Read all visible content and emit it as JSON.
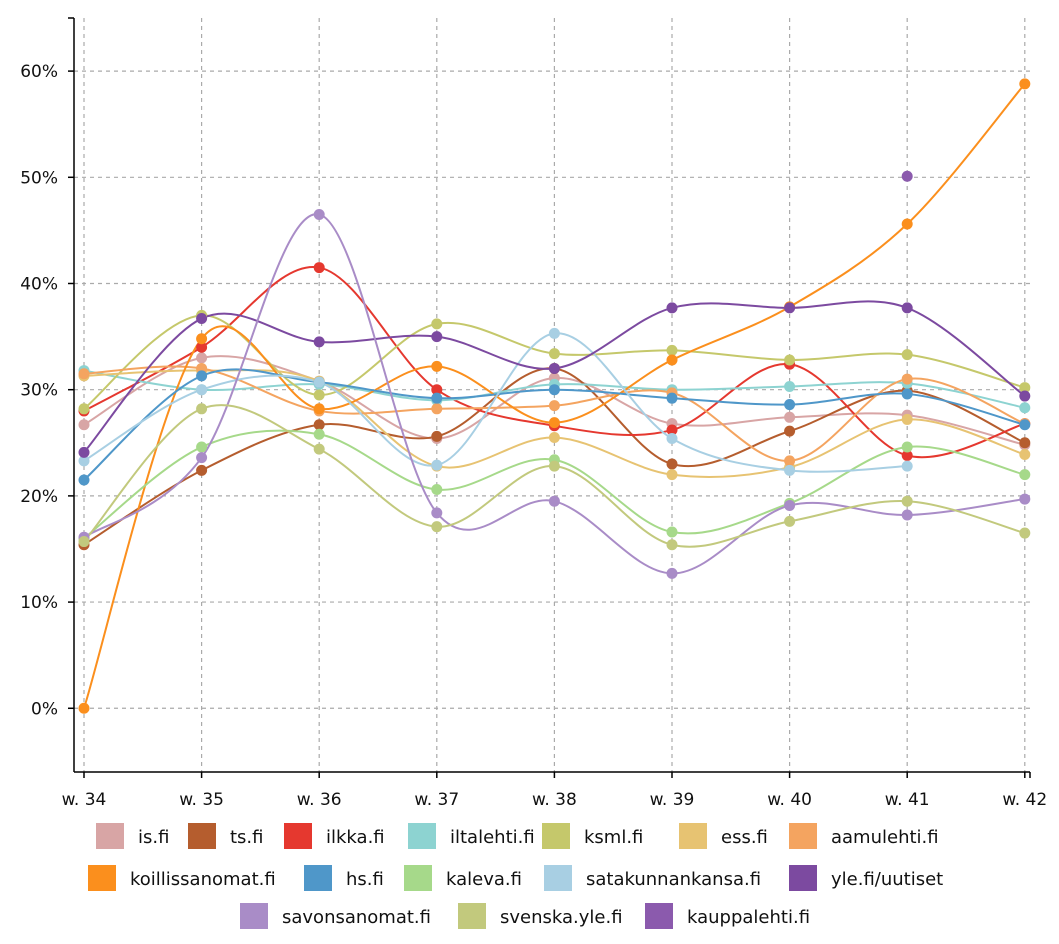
{
  "chart_data": {
    "type": "line",
    "title": "",
    "xlabel": "",
    "ylabel": "",
    "categories": [
      "w. 34",
      "w. 35",
      "w. 36",
      "w. 37",
      "w. 38",
      "w. 39",
      "w. 40",
      "w. 41",
      "w. 42"
    ],
    "ylim": [
      -0.06,
      0.65
    ],
    "yticks": [
      0,
      0.1,
      0.2,
      0.3,
      0.4,
      0.5,
      0.6
    ],
    "ytick_labels": [
      "0%",
      "10%",
      "20%",
      "30%",
      "40%",
      "50%",
      "60%"
    ],
    "grid": true,
    "legend_position": "bottom",
    "series": [
      {
        "name": "is.fi",
        "color": "#d8a5a5",
        "values": [
          0.267,
          0.33,
          0.308,
          0.254,
          0.311,
          0.268,
          0.274,
          0.276,
          0.248
        ]
      },
      {
        "name": "ts.fi",
        "color": "#b55d2e",
        "values": [
          0.154,
          0.224,
          0.267,
          0.256,
          0.32,
          0.23,
          0.261,
          0.299,
          0.25
        ]
      },
      {
        "name": "ilkka.fi",
        "color": "#e5382f",
        "values": [
          0.28,
          0.34,
          0.415,
          0.3,
          0.266,
          0.262,
          0.324,
          0.238,
          0.268
        ]
      },
      {
        "name": "iltalehti.fi",
        "color": "#8dd3d1",
        "values": [
          0.318,
          0.3,
          0.305,
          0.29,
          0.305,
          0.3,
          0.303,
          0.306,
          0.283
        ]
      },
      {
        "name": "ksml.fi",
        "color": "#c5c86b",
        "values": [
          0.282,
          0.37,
          0.295,
          0.362,
          0.334,
          0.337,
          0.328,
          0.333,
          0.302
        ]
      },
      {
        "name": "ess.fi",
        "color": "#e7c372",
        "values": [
          0.313,
          0.318,
          0.308,
          0.228,
          0.255,
          0.22,
          0.227,
          0.272,
          0.239
        ]
      },
      {
        "name": "aamulehti.fi",
        "color": "#f4a460",
        "values": [
          0.315,
          0.32,
          0.28,
          0.282,
          0.285,
          0.297,
          0.233,
          0.31,
          0.268
        ]
      },
      {
        "name": "koillissanomat.fi",
        "color": "#fb8f1d",
        "values": [
          0.0,
          0.348,
          0.282,
          0.322,
          0.269,
          0.328,
          0.378,
          0.456,
          0.588
        ]
      },
      {
        "name": "hs.fi",
        "color": "#4f97c9",
        "values": [
          0.215,
          0.313,
          0.307,
          0.292,
          0.3,
          0.292,
          0.286,
          0.296,
          0.267
        ]
      },
      {
        "name": "kaleva.fi",
        "color": "#a6d98a",
        "values": [
          0.16,
          0.246,
          0.258,
          0.206,
          0.234,
          0.166,
          0.193,
          0.246,
          0.22
        ]
      },
      {
        "name": "satakunnankansa.fi",
        "color": "#a8cfe3",
        "values": [
          0.233,
          0.3,
          0.307,
          0.229,
          0.353,
          0.254,
          0.224,
          0.228,
          null
        ]
      },
      {
        "name": "yle.fi/uutiset",
        "color": "#7c4aa0",
        "values": [
          0.241,
          0.367,
          0.345,
          0.35,
          0.32,
          0.377,
          0.377,
          0.377,
          0.294
        ]
      },
      {
        "name": "savonsanomat.fi",
        "color": "#a98cc7",
        "values": [
          0.161,
          0.236,
          0.465,
          0.184,
          0.195,
          0.127,
          0.191,
          0.182,
          0.197
        ]
      },
      {
        "name": "svenska.yle.fi",
        "color": "#c2c97d",
        "values": [
          0.157,
          0.282,
          0.244,
          0.171,
          0.228,
          0.154,
          0.176,
          0.195,
          0.165
        ]
      },
      {
        "name": "kauppalehti.fi",
        "color": "#8b5aad",
        "values": [
          null,
          null,
          null,
          null,
          null,
          null,
          null,
          0.501,
          null
        ]
      }
    ]
  }
}
